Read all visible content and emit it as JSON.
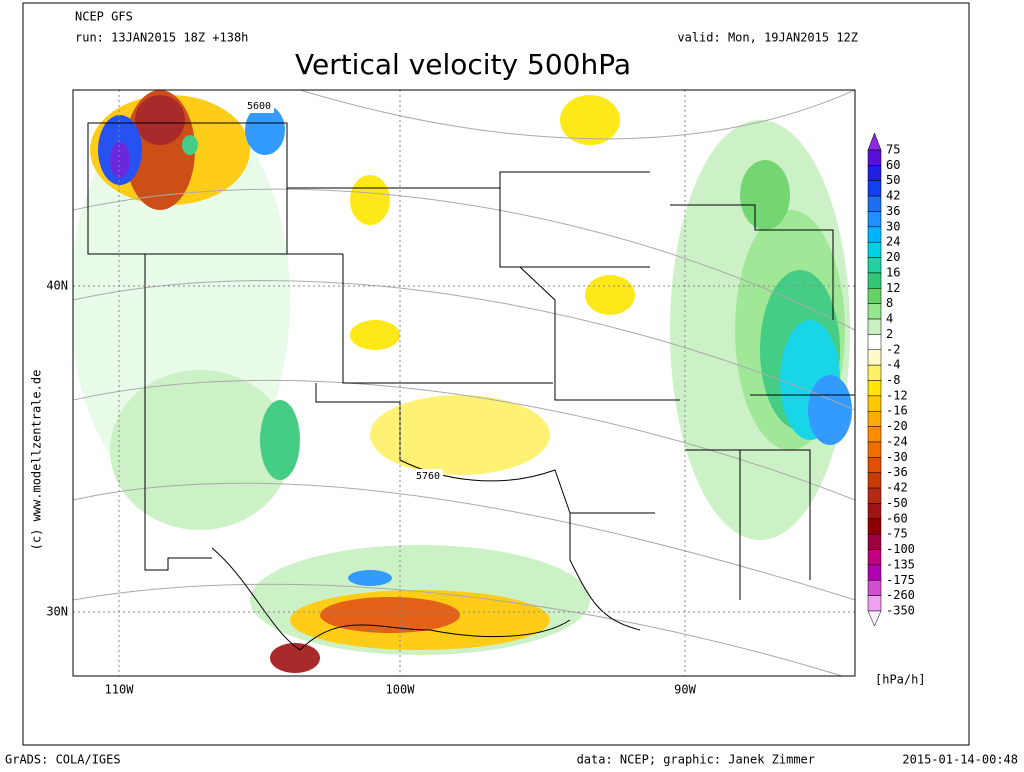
{
  "header": {
    "model": "NCEP GFS",
    "run": "run: 13JAN2015 18Z +138h",
    "valid": "valid: Mon, 19JAN2015 12Z",
    "title": "Vertical velocity 500hPa"
  },
  "map": {
    "lat_labels": [
      "40N",
      "30N"
    ],
    "lon_labels": [
      "110W",
      "100W",
      "90W"
    ],
    "contour_labels": [
      "5600",
      "5760"
    ],
    "credit": "(c) www.modellzentrale.de"
  },
  "legend": {
    "levels": [
      75,
      60,
      50,
      42,
      36,
      30,
      24,
      20,
      16,
      12,
      8,
      4,
      2,
      -2,
      -4,
      -8,
      -12,
      -16,
      -20,
      -24,
      -30,
      -36,
      -42,
      -50,
      -60,
      -75,
      -100,
      -135,
      -175,
      -260,
      -350
    ],
    "colors": [
      "#8a2be2",
      "#5a10d8",
      "#2020e0",
      "#1040f0",
      "#1e6ef0",
      "#1e90ff",
      "#00b4ff",
      "#00d2e6",
      "#20d2a0",
      "#32c878",
      "#64d264",
      "#96e68c",
      "#c8f0c0",
      "#ffffff",
      "#fffac8",
      "#fff064",
      "#ffe600",
      "#ffc800",
      "#ffaa00",
      "#ff8c00",
      "#f06e00",
      "#e05000",
      "#c83c00",
      "#b42814",
      "#a01414",
      "#900000",
      "#a00040",
      "#c00080",
      "#b000b0",
      "#d050d0",
      "#f0a0f0",
      "#fff0ff"
    ],
    "unit": "[hPa/h]"
  },
  "footer": {
    "left": "GrADS: COLA/IGES",
    "center": "data: NCEP; graphic: Janek Zimmer",
    "right": "2015-01-14-00:48"
  }
}
